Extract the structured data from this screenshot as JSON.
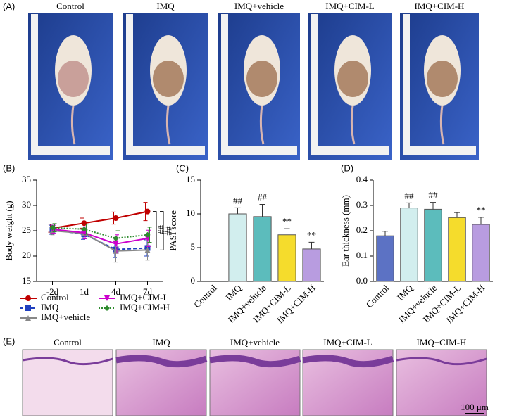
{
  "figure": {
    "panel_labels": [
      "(A)",
      "(B)",
      "(C)",
      "(D)",
      "(E)"
    ],
    "mouse_photos": [
      "Control",
      "IMQ",
      "IMQ+vehicle",
      "IMQ+CIM-L",
      "IMQ+CIM-H"
    ],
    "histology": [
      "Control",
      "IMQ",
      "IMQ+vehicle",
      "IMQ+CIM-L",
      "IMQ+CIM-H"
    ],
    "scale_bar": "100 μm"
  },
  "chart_data": [
    {
      "type": "line",
      "y_label": "Body weight (g)",
      "categories": [
        "-2d",
        "1d",
        "4d",
        "7d"
      ],
      "ylim": [
        15,
        35
      ],
      "yticks": [
        15,
        20,
        25,
        30,
        35
      ],
      "series": [
        {
          "name": "Control",
          "color": "#c00000",
          "line_style": "solid",
          "values": [
            25.5,
            26.5,
            27.5,
            28.8
          ],
          "errors": [
            0.8,
            1.0,
            1.2,
            1.8
          ]
        },
        {
          "name": "IMQ",
          "color": "#1f3fbf",
          "line_style": "dashed",
          "values": [
            25.2,
            24.3,
            21.3,
            21.6
          ],
          "errors": [
            0.9,
            1.0,
            1.6,
            1.6
          ]
        },
        {
          "name": "IMQ+vehicle",
          "color": "#888888",
          "line_style": "solid",
          "values": [
            25.0,
            24.5,
            21.0,
            21.2
          ],
          "errors": [
            0.8,
            1.0,
            2.2,
            2.0
          ]
        },
        {
          "name": "IMQ+CIM-L",
          "color": "#cc00cc",
          "line_style": "solid",
          "values": [
            25.3,
            24.6,
            22.4,
            23.5
          ],
          "errors": [
            0.8,
            1.2,
            1.8,
            1.6
          ]
        },
        {
          "name": "IMQ+CIM-H",
          "color": "#2e8b2e",
          "line_style": "dotted",
          "values": [
            25.6,
            25.3,
            23.5,
            24.2
          ],
          "errors": [
            0.8,
            1.0,
            1.5,
            1.5
          ]
        }
      ],
      "annotations": [
        "##",
        "##"
      ]
    },
    {
      "type": "bar",
      "y_label": "PASI score",
      "categories": [
        "Control",
        "IMQ",
        "IMQ+vehicle",
        "IMQ+CIM-L",
        "IMQ+CIM-H"
      ],
      "values": [
        0,
        10,
        9.6,
        6.9,
        4.8
      ],
      "errors": [
        0,
        0.9,
        1.8,
        0.9,
        1.0
      ],
      "colors": [
        "#ffffff",
        "#d2eeee",
        "#5cbcbc",
        "#f5dc2c",
        "#b89ce0"
      ],
      "annotations": [
        null,
        "##",
        "##",
        "**",
        "**"
      ],
      "ylim": [
        0,
        15
      ],
      "yticks": [
        0,
        5,
        10,
        15
      ]
    },
    {
      "type": "bar",
      "y_label": "Ear thickness (mm)",
      "categories": [
        "Control",
        "IMQ",
        "IMQ+vehicle",
        "IMQ+CIM-L",
        "IMQ+CIM-H"
      ],
      "values": [
        0.18,
        0.29,
        0.285,
        0.252,
        0.225
      ],
      "errors": [
        0.018,
        0.02,
        0.027,
        0.02,
        0.028
      ],
      "colors": [
        "#5c72c4",
        "#d2eeee",
        "#5cbcbc",
        "#f5dc2c",
        "#b89ce0"
      ],
      "annotations": [
        null,
        "##",
        "##",
        null,
        "**"
      ],
      "ylim": [
        0,
        0.4
      ],
      "yticks": [
        {
          "value": 0,
          "label": "0.0"
        },
        0.1,
        0.2,
        0.3,
        0.4
      ]
    }
  ]
}
